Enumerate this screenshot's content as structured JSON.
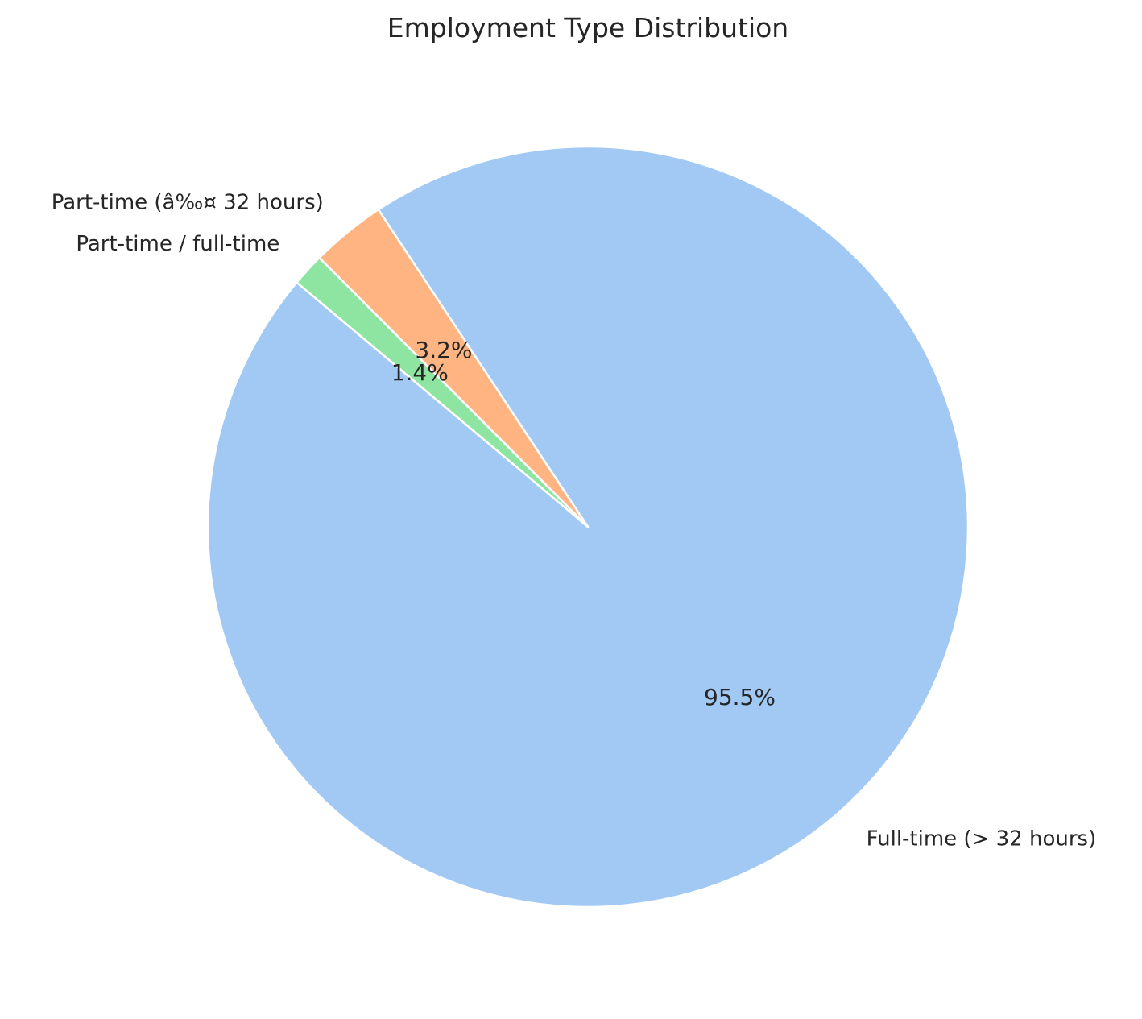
{
  "chart_data": {
    "type": "pie",
    "title": "Employment Type Distribution",
    "slices": [
      {
        "label": "Full-time (> 32 hours)",
        "value": 95.5,
        "pct_label": "95.5%",
        "color": "#a1c9f4"
      },
      {
        "label": "Part-time (â‰¤ 32 hours)",
        "value": 3.2,
        "pct_label": "3.2%",
        "color": "#ffb482"
      },
      {
        "label": "Part-time / full-time",
        "value": 1.4,
        "pct_label": "1.4%",
        "color": "#8de5a1"
      }
    ],
    "start_angle_deg": 140,
    "direction": "counterclockwise",
    "edge_color": "#ffffff",
    "legend": "none"
  }
}
